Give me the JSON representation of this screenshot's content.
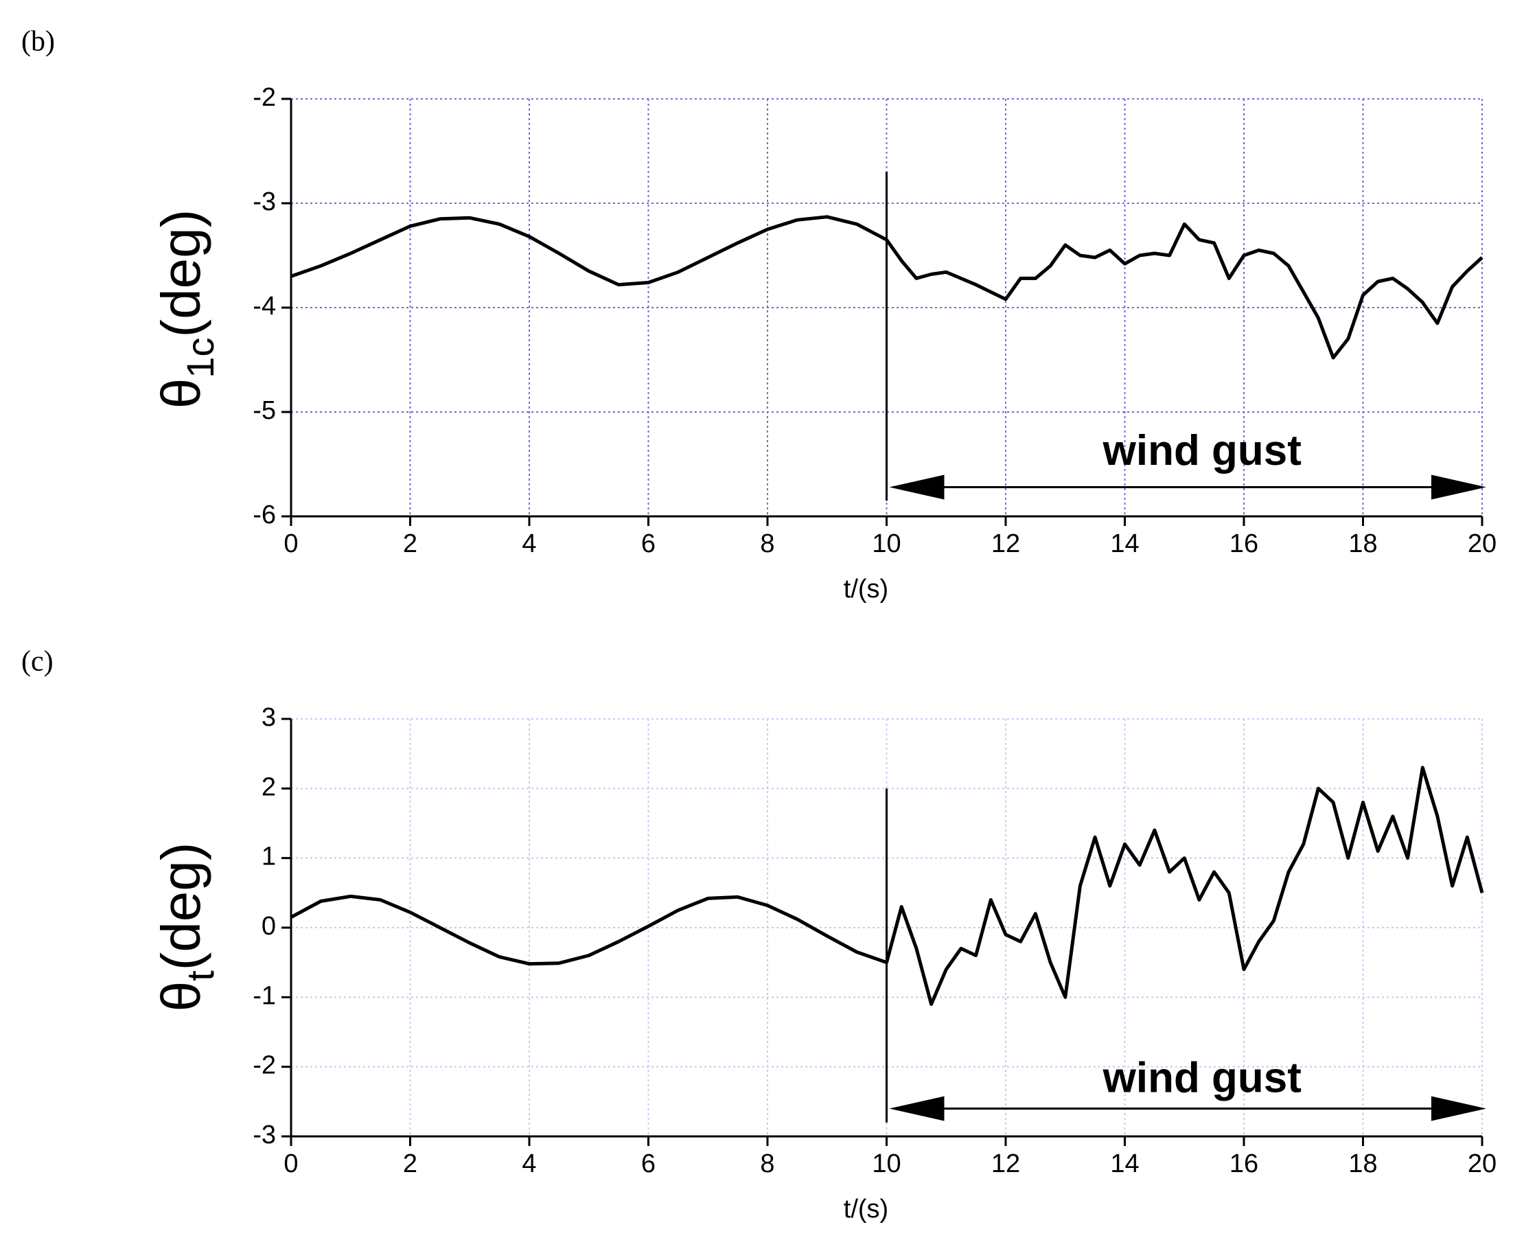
{
  "chart_data": [
    {
      "type": "line",
      "panel_label": "(b)",
      "ylabel": {
        "symbol": "θ",
        "subscript": "1c",
        "unit": "(deg)"
      },
      "xlabel": "t/(s)",
      "xlim": [
        0,
        20
      ],
      "xticks": [
        0,
        2,
        4,
        6,
        8,
        10,
        12,
        14,
        16,
        18,
        20
      ],
      "ylim": [
        -6,
        -2
      ],
      "yticks": [
        -6,
        -5,
        -4,
        -3,
        -2
      ],
      "grid": true,
      "grid_color": "#6b6bd6",
      "gust": {
        "label": "wind gust",
        "xrange": [
          10,
          20
        ]
      },
      "series": [
        {
          "color": "#000000",
          "x": [
            0,
            0.5,
            1,
            1.5,
            2,
            2.5,
            3,
            3.5,
            4,
            4.5,
            5,
            5.5,
            6,
            6.5,
            7,
            7.5,
            8,
            8.5,
            9,
            9.5,
            10,
            10.25,
            10.5,
            10.75,
            11,
            11.25,
            11.5,
            11.75,
            12,
            12.25,
            12.5,
            12.75,
            13,
            13.25,
            13.5,
            13.75,
            14,
            14.25,
            14.5,
            14.75,
            15,
            15.25,
            15.5,
            15.75,
            16,
            16.25,
            16.5,
            16.75,
            17,
            17.25,
            17.5,
            17.75,
            18,
            18.25,
            18.5,
            18.75,
            19,
            19.25,
            19.5,
            19.75,
            20
          ],
          "values": [
            -3.7,
            -3.6,
            -3.48,
            -3.35,
            -3.22,
            -3.15,
            -3.14,
            -3.2,
            -3.32,
            -3.48,
            -3.65,
            -3.78,
            -3.76,
            -3.66,
            -3.52,
            -3.38,
            -3.25,
            -3.16,
            -3.13,
            -3.2,
            -3.35,
            -3.55,
            -3.72,
            -3.68,
            -3.66,
            -3.72,
            -3.78,
            -3.85,
            -3.92,
            -3.72,
            -3.72,
            -3.6,
            -3.4,
            -3.5,
            -3.52,
            -3.45,
            -3.58,
            -3.5,
            -3.48,
            -3.5,
            -3.2,
            -3.35,
            -3.38,
            -3.72,
            -3.5,
            -3.45,
            -3.48,
            -3.6,
            -3.85,
            -4.1,
            -4.48,
            -4.3,
            -3.88,
            -3.75,
            -3.72,
            -3.82,
            -3.95,
            -4.15,
            -3.8,
            -3.65,
            -3.52
          ]
        }
      ]
    },
    {
      "type": "line",
      "panel_label": "(c)",
      "ylabel": {
        "symbol": "θ",
        "subscript": "t",
        "unit": "(deg)"
      },
      "xlabel": "t/(s)",
      "xlim": [
        0,
        20
      ],
      "xticks": [
        0,
        2,
        4,
        6,
        8,
        10,
        12,
        14,
        16,
        18,
        20
      ],
      "ylim": [
        -3,
        3
      ],
      "yticks": [
        -3,
        -2,
        -1,
        0,
        1,
        2,
        3
      ],
      "grid": true,
      "grid_color": "#c8c8f4",
      "gust": {
        "label": "wind gust",
        "xrange": [
          10,
          20
        ]
      },
      "series": [
        {
          "color": "#000000",
          "x": [
            0,
            0.5,
            1,
            1.5,
            2,
            2.5,
            3,
            3.5,
            4,
            4.5,
            5,
            5.5,
            6,
            6.5,
            7,
            7.5,
            8,
            8.5,
            9,
            9.5,
            10,
            10.25,
            10.5,
            10.75,
            11,
            11.25,
            11.5,
            11.75,
            12,
            12.25,
            12.5,
            12.75,
            13,
            13.25,
            13.5,
            13.75,
            14,
            14.25,
            14.5,
            14.75,
            15,
            15.25,
            15.5,
            15.75,
            16,
            16.25,
            16.5,
            16.75,
            17,
            17.25,
            17.5,
            17.75,
            18,
            18.25,
            18.5,
            18.75,
            19,
            19.25,
            19.5,
            19.75,
            20
          ],
          "values": [
            0.15,
            0.38,
            0.45,
            0.4,
            0.22,
            0.0,
            -0.22,
            -0.42,
            -0.52,
            -0.51,
            -0.4,
            -0.2,
            0.02,
            0.25,
            0.42,
            0.44,
            0.32,
            0.12,
            -0.12,
            -0.35,
            -0.5,
            0.3,
            -0.3,
            -1.1,
            -0.6,
            -0.3,
            -0.4,
            0.4,
            -0.1,
            -0.2,
            0.2,
            -0.5,
            -1.0,
            0.6,
            1.3,
            0.6,
            1.2,
            0.9,
            1.4,
            0.8,
            1.0,
            0.4,
            0.8,
            0.5,
            -0.6,
            -0.2,
            0.1,
            0.8,
            1.2,
            2.0,
            1.8,
            1.0,
            1.8,
            1.1,
            1.6,
            1.0,
            2.3,
            1.6,
            0.6,
            1.3,
            0.5
          ]
        }
      ]
    }
  ]
}
